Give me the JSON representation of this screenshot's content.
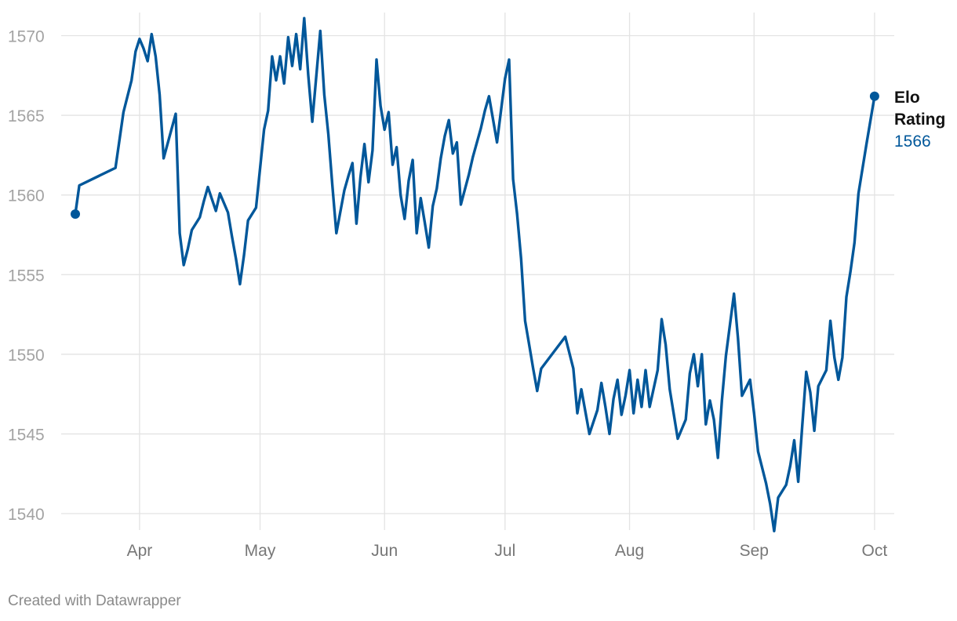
{
  "chart_data": {
    "type": "line",
    "x_axis": {
      "type": "date",
      "ticks": [
        {
          "label": "Apr",
          "date": "2023-04-01"
        },
        {
          "label": "May",
          "date": "2023-05-01"
        },
        {
          "label": "Jun",
          "date": "2023-06-01"
        },
        {
          "label": "Jul",
          "date": "2023-07-01"
        },
        {
          "label": "Aug",
          "date": "2023-08-01"
        },
        {
          "label": "Sep",
          "date": "2023-09-01"
        },
        {
          "label": "Oct",
          "date": "2023-10-01"
        }
      ],
      "range": [
        "2023-03-16",
        "2023-10-02"
      ]
    },
    "y_axis": {
      "ticks": [
        1540,
        1545,
        1550,
        1555,
        1560,
        1565,
        1570
      ],
      "range": [
        1539,
        1571.3
      ]
    },
    "grid": true,
    "colors": {
      "series": "#00579a"
    },
    "series": [
      {
        "name": "Elo Rating",
        "last_value_label": "1566",
        "x": [
          "2023-03-16",
          "2023-03-17",
          "2023-03-26",
          "2023-03-28",
          "2023-03-30",
          "2023-03-31",
          "2023-04-01",
          "2023-04-02",
          "2023-04-03",
          "2023-04-04",
          "2023-04-05",
          "2023-04-06",
          "2023-04-07",
          "2023-04-10",
          "2023-04-11",
          "2023-04-12",
          "2023-04-13",
          "2023-04-14",
          "2023-04-16",
          "2023-04-17",
          "2023-04-18",
          "2023-04-20",
          "2023-04-21",
          "2023-04-23",
          "2023-04-24",
          "2023-04-25",
          "2023-04-26",
          "2023-04-27",
          "2023-04-28",
          "2023-04-30",
          "2023-05-02",
          "2023-05-03",
          "2023-05-04",
          "2023-05-05",
          "2023-05-06",
          "2023-05-07",
          "2023-05-08",
          "2023-05-09",
          "2023-05-10",
          "2023-05-11",
          "2023-05-12",
          "2023-05-13",
          "2023-05-14",
          "2023-05-16",
          "2023-05-17",
          "2023-05-18",
          "2023-05-19",
          "2023-05-20",
          "2023-05-22",
          "2023-05-23",
          "2023-05-24",
          "2023-05-25",
          "2023-05-26",
          "2023-05-27",
          "2023-05-28",
          "2023-05-29",
          "2023-05-30",
          "2023-05-31",
          "2023-06-01",
          "2023-06-02",
          "2023-06-03",
          "2023-06-04",
          "2023-06-05",
          "2023-06-06",
          "2023-06-07",
          "2023-06-08",
          "2023-06-09",
          "2023-06-10",
          "2023-06-11",
          "2023-06-12",
          "2023-06-13",
          "2023-06-14",
          "2023-06-15",
          "2023-06-16",
          "2023-06-17",
          "2023-06-18",
          "2023-06-19",
          "2023-06-20",
          "2023-06-22",
          "2023-06-23",
          "2023-06-25",
          "2023-06-26",
          "2023-06-27",
          "2023-06-29",
          "2023-06-30",
          "2023-07-01",
          "2023-07-02",
          "2023-07-03",
          "2023-07-04",
          "2023-07-05",
          "2023-07-06",
          "2023-07-07",
          "2023-07-08",
          "2023-07-09",
          "2023-07-10",
          "2023-07-16",
          "2023-07-18",
          "2023-07-19",
          "2023-07-20",
          "2023-07-22",
          "2023-07-24",
          "2023-07-25",
          "2023-07-26",
          "2023-07-27",
          "2023-07-28",
          "2023-07-29",
          "2023-07-30",
          "2023-07-31",
          "2023-08-01",
          "2023-08-02",
          "2023-08-03",
          "2023-08-04",
          "2023-08-05",
          "2023-08-06",
          "2023-08-08",
          "2023-08-09",
          "2023-08-10",
          "2023-08-11",
          "2023-08-13",
          "2023-08-15",
          "2023-08-16",
          "2023-08-17",
          "2023-08-18",
          "2023-08-19",
          "2023-08-20",
          "2023-08-21",
          "2023-08-22",
          "2023-08-23",
          "2023-08-24",
          "2023-08-25",
          "2023-08-27",
          "2023-08-28",
          "2023-08-29",
          "2023-08-31",
          "2023-09-01",
          "2023-09-02",
          "2023-09-04",
          "2023-09-05",
          "2023-09-06",
          "2023-09-07",
          "2023-09-09",
          "2023-09-10",
          "2023-09-11",
          "2023-09-12",
          "2023-09-13",
          "2023-09-14",
          "2023-09-15",
          "2023-09-16",
          "2023-09-17",
          "2023-09-19",
          "2023-09-20",
          "2023-09-21",
          "2023-09-22",
          "2023-09-23",
          "2023-09-24",
          "2023-09-25",
          "2023-09-26",
          "2023-09-27",
          "2023-09-29",
          "2023-10-01"
        ],
        "values": [
          1558.8,
          1560.6,
          1561.7,
          1565.2,
          1567.2,
          1569.0,
          1569.8,
          1569.2,
          1568.4,
          1570.1,
          1568.7,
          1566.3,
          1562.3,
          1565.1,
          1557.6,
          1555.6,
          1556.6,
          1557.8,
          1558.6,
          1559.6,
          1560.5,
          1559.0,
          1560.1,
          1558.9,
          1557.4,
          1556.0,
          1554.4,
          1556.2,
          1558.4,
          1559.2,
          1564.1,
          1565.3,
          1568.7,
          1567.2,
          1568.7,
          1567.0,
          1569.9,
          1568.1,
          1570.1,
          1567.9,
          1571.1,
          1567.5,
          1564.6,
          1570.3,
          1566.3,
          1563.8,
          1560.6,
          1557.6,
          1560.3,
          1561.2,
          1562.0,
          1558.2,
          1561.1,
          1563.2,
          1560.8,
          1562.8,
          1568.5,
          1565.6,
          1564.1,
          1565.2,
          1561.9,
          1563.0,
          1560.0,
          1558.5,
          1560.9,
          1562.2,
          1557.6,
          1559.8,
          1558.3,
          1556.7,
          1559.3,
          1560.4,
          1562.3,
          1563.7,
          1564.7,
          1562.6,
          1563.3,
          1559.4,
          1561.3,
          1562.4,
          1564.2,
          1565.3,
          1566.2,
          1563.3,
          1565.3,
          1567.3,
          1568.5,
          1561.0,
          1558.8,
          1556.0,
          1552.1,
          1550.6,
          1549.1,
          1547.7,
          1549.1,
          1551.1,
          1549.1,
          1546.3,
          1547.8,
          1545.0,
          1546.5,
          1548.2,
          1546.7,
          1545.0,
          1547.2,
          1548.4,
          1546.2,
          1547.4,
          1549.0,
          1546.3,
          1548.4,
          1546.7,
          1549.0,
          1546.7,
          1549.0,
          1552.2,
          1550.6,
          1547.8,
          1544.7,
          1545.9,
          1548.8,
          1550.0,
          1548.0,
          1550.0,
          1545.6,
          1547.1,
          1545.9,
          1543.5,
          1547.1,
          1549.9,
          1553.8,
          1551.0,
          1547.4,
          1548.4,
          1546.3,
          1543.9,
          1541.9,
          1540.6,
          1538.9,
          1541.0,
          1541.8,
          1543.0,
          1544.6,
          1542.0,
          1545.5,
          1548.9,
          1547.6,
          1545.2,
          1548.0,
          1549.0,
          1552.1,
          1549.8,
          1548.4,
          1549.8,
          1553.6,
          1555.2,
          1557.0,
          1560.1,
          1563.2,
          1566.2
        ]
      }
    ]
  },
  "footer": {
    "credit": "Created with Datawrapper"
  }
}
